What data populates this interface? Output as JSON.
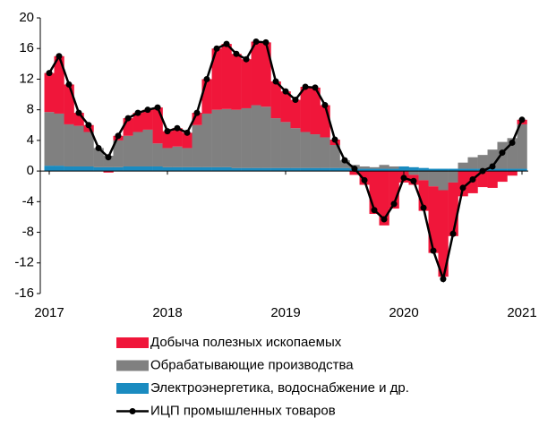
{
  "chart_data": {
    "type": "bar",
    "stacked": true,
    "x": [
      2017,
      2017.083,
      2017.167,
      2017.25,
      2017.333,
      2017.417,
      2017.5,
      2017.583,
      2017.667,
      2017.75,
      2017.833,
      2017.917,
      2018,
      2018.083,
      2018.167,
      2018.25,
      2018.333,
      2018.417,
      2018.5,
      2018.583,
      2018.667,
      2018.75,
      2018.833,
      2018.917,
      2019,
      2019.083,
      2019.167,
      2019.25,
      2019.333,
      2019.417,
      2019.5,
      2019.583,
      2019.667,
      2019.75,
      2019.833,
      2019.917,
      2020,
      2020.083,
      2020.167,
      2020.25,
      2020.333,
      2020.417,
      2020.5,
      2020.583,
      2020.667,
      2020.75,
      2020.833,
      2020.917,
      2021
    ],
    "series": [
      {
        "name": "Электроэнергетика, водоснабжение и др.",
        "color": "#1a8bc0",
        "values": [
          0.7,
          0.7,
          0.6,
          0.6,
          0.6,
          0.5,
          0.5,
          0.5,
          0.6,
          0.6,
          0.6,
          0.6,
          0.5,
          0.5,
          0.5,
          0.5,
          0.5,
          0.5,
          0.5,
          0.4,
          0.4,
          0.4,
          0.4,
          0.4,
          0.4,
          0.4,
          0.4,
          0.4,
          0.4,
          0.4,
          0.4,
          0.3,
          0.3,
          0.3,
          0.3,
          0.3,
          0.6,
          0.5,
          0.4,
          0.3,
          0.3,
          0.3,
          0.3,
          0.3,
          0.3,
          0.3,
          0.3,
          0.3,
          0.3
        ]
      },
      {
        "name": "Обрабатывающие производства",
        "color": "#808080",
        "values": [
          7.0,
          6.8,
          5.5,
          5.3,
          4.5,
          2.5,
          1.5,
          3.5,
          4.0,
          4.5,
          4.8,
          3.0,
          2.5,
          2.7,
          2.5,
          5.5,
          7.0,
          7.5,
          7.6,
          7.6,
          7.8,
          8.2,
          8.0,
          6.5,
          6.0,
          5.2,
          4.7,
          4.4,
          4.0,
          3.0,
          1.0,
          0.5,
          0.3,
          0.2,
          0.5,
          0.3,
          0,
          -0.5,
          -1.2,
          -2.0,
          -2.5,
          -1.5,
          0.8,
          1.5,
          1.8,
          2.5,
          3.5,
          4.0,
          5.8
        ]
      },
      {
        "name": "Добыча полезных ископаемых",
        "color": "#f0163a",
        "values": [
          5.1,
          7.5,
          5.2,
          1.7,
          0.9,
          0,
          -0.2,
          0.6,
          2.3,
          2.5,
          2.6,
          4.7,
          2.2,
          2.4,
          2.0,
          1.6,
          4.5,
          8.0,
          8.5,
          7.3,
          6.4,
          8.3,
          8.4,
          4.8,
          4.0,
          3.7,
          5.9,
          6.1,
          4.2,
          0.7,
          0,
          -0.5,
          -1.8,
          -5.6,
          -7.1,
          -4.9,
          -1.5,
          -1.3,
          -4.0,
          -8.7,
          -11.3,
          -7.0,
          -3.3,
          -2.9,
          -2.1,
          -2.2,
          -1.4,
          -0.6,
          0.6
        ]
      },
      {
        "name": "ИЦП промышленных товаров",
        "color": "#000000",
        "type": "line",
        "values": [
          12.8,
          15.0,
          11.3,
          7.6,
          6.0,
          3.0,
          1.8,
          4.6,
          6.9,
          7.6,
          8.0,
          8.3,
          5.2,
          5.6,
          5.0,
          7.6,
          12.0,
          16.0,
          16.6,
          15.3,
          14.6,
          16.9,
          16.8,
          11.7,
          10.4,
          9.3,
          11.0,
          10.9,
          8.6,
          4.1,
          1.4,
          0.3,
          -1.2,
          -5.1,
          -6.3,
          -4.3,
          -0.9,
          -1.3,
          -4.8,
          -10.4,
          -14.1,
          -8.2,
          -2.2,
          -1.1,
          0.0,
          0.6,
          2.4,
          3.7,
          6.7
        ]
      }
    ],
    "xlim": [
      2017,
      2021
    ],
    "xticks": [
      2017,
      2018,
      2019,
      2020,
      2021
    ],
    "ylim": [
      -16,
      20
    ],
    "yticks": [
      -16,
      -12,
      -8,
      -4,
      0,
      4,
      8,
      12,
      16,
      20
    ],
    "legend": "bottom"
  }
}
